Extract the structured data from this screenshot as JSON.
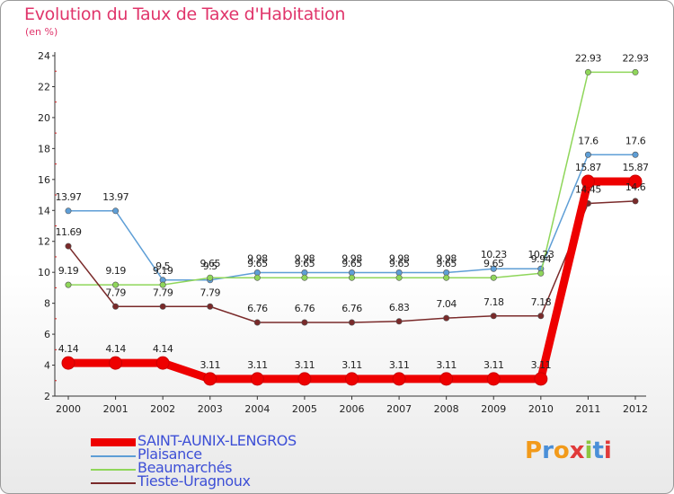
{
  "title": "Evolution du Taux de Taxe d'Habitation",
  "unit_label": "(en %)",
  "logo_text": "Proxiti",
  "chart_data": {
    "type": "line",
    "title": "Evolution du Taux de Taxe d'Habitation",
    "ylabel": "(en %)",
    "xlabel": "",
    "x": [
      "2000",
      "2001",
      "2002",
      "2003",
      "2004",
      "2005",
      "2006",
      "2007",
      "2008",
      "2009",
      "2010",
      "2011",
      "2012"
    ],
    "ylim": [
      2,
      24
    ],
    "yticks": [
      2,
      4,
      6,
      8,
      10,
      12,
      14,
      16,
      18,
      20,
      22,
      24
    ],
    "grid": false,
    "legend_position": "bottom-left",
    "series": [
      {
        "name": "SAINT-AUNIX-LENGROS",
        "color": "#ee0000",
        "values": [
          4.14,
          4.14,
          4.14,
          3.11,
          3.11,
          3.11,
          3.11,
          3.11,
          3.11,
          3.11,
          3.11,
          15.87,
          15.87
        ],
        "labels": [
          "4.14",
          "4.14",
          "4.14",
          "3.11",
          "3.11",
          "3.11",
          "3.11",
          "3.11",
          "3.11",
          "3.11",
          "3.11",
          "15.87",
          "15.87"
        ]
      },
      {
        "name": "Plaisance",
        "color": "#5e9ed6",
        "values": [
          13.97,
          13.97,
          9.5,
          9.5,
          9.98,
          9.98,
          9.98,
          9.98,
          9.98,
          10.23,
          10.23,
          17.6,
          17.6
        ],
        "labels": [
          "13.97",
          "13.97",
          "9.5",
          "9.5",
          "9.98",
          "9.98",
          "9.98",
          "9.98",
          "9.98",
          "10.23",
          "10.23",
          "17.6",
          "17.6"
        ]
      },
      {
        "name": "Beaumarchés",
        "color": "#8fd65a",
        "values": [
          9.19,
          9.19,
          9.19,
          9.65,
          9.65,
          9.65,
          9.65,
          9.65,
          9.65,
          9.65,
          9.94,
          22.93,
          22.93
        ],
        "labels": [
          "9.19",
          "9.19",
          "9.19",
          "9.65",
          "9.65",
          "9.65",
          "9.65",
          "9.65",
          "9.65",
          "9.65",
          "9.94",
          "22.93",
          "22.93"
        ]
      },
      {
        "name": "Tieste-Uragnoux",
        "color": "#7a2a2a",
        "values": [
          11.69,
          7.79,
          7.79,
          7.79,
          6.76,
          6.76,
          6.76,
          6.83,
          7.04,
          7.18,
          7.18,
          14.45,
          14.6
        ],
        "labels": [
          "11.69",
          "7.79",
          "7.79",
          "7.79",
          "6.76",
          "6.76",
          "6.76",
          "6.83",
          "7.04",
          "7.18",
          "7.18",
          "14.45",
          "14.6"
        ]
      }
    ]
  }
}
